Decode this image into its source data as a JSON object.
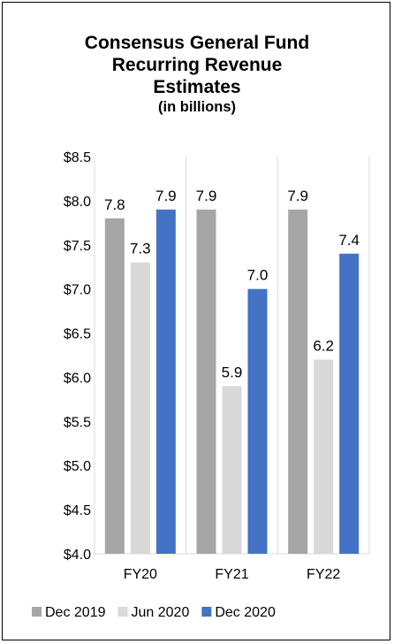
{
  "chart_data": {
    "type": "bar",
    "title_lines": [
      "Consensus General Fund",
      "Recurring Revenue",
      "Estimates"
    ],
    "subtitle": "(in billions)",
    "categories": [
      "FY20",
      "FY21",
      "FY22"
    ],
    "series": [
      {
        "name": "Dec 2019",
        "color": "#a6a6a6",
        "values": [
          7.8,
          7.9,
          7.9
        ]
      },
      {
        "name": "Jun 2020",
        "color": "#d9d9d9",
        "values": [
          7.3,
          5.9,
          6.2
        ]
      },
      {
        "name": "Dec 2020",
        "color": "#4472c4",
        "values": [
          7.9,
          7.0,
          7.4
        ]
      }
    ],
    "ylim": [
      4.0,
      8.5
    ],
    "ytick_labels": [
      "$4.0",
      "$4.5",
      "$5.0",
      "$5.5",
      "$6.0",
      "$6.5",
      "$7.0",
      "$7.5",
      "$8.0",
      "$8.5"
    ],
    "ytick_values": [
      4.0,
      4.5,
      5.0,
      5.5,
      6.0,
      6.5,
      7.0,
      7.5,
      8.0,
      8.5
    ],
    "data_labels": [
      [
        "7.8",
        "7.3",
        "7.9"
      ],
      [
        "7.9",
        "5.9",
        "7.0"
      ],
      [
        "7.9",
        "6.2",
        "7.4"
      ]
    ],
    "grid": false,
    "legend": "bottom"
  }
}
